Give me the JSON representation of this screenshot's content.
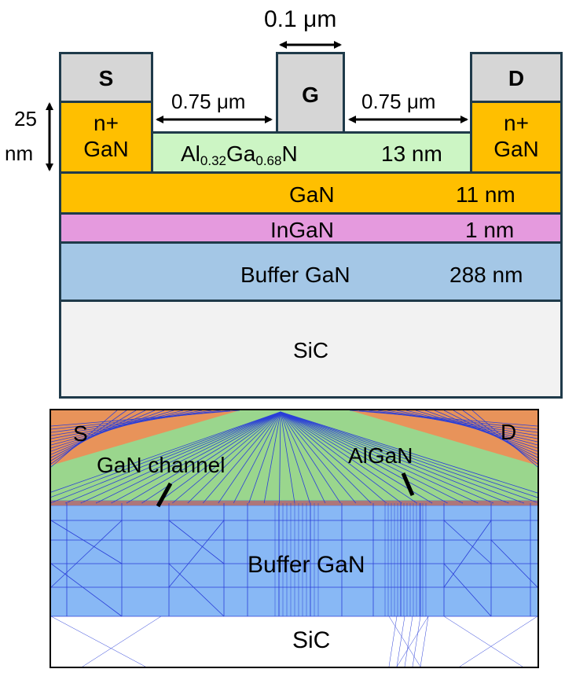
{
  "structure": {
    "gate_width": "0.1 μm",
    "spacing_left": "0.75 μm",
    "spacing_right": "0.75 μm",
    "height_label_top": "25",
    "height_label_bottom": "nm",
    "source_label": "S",
    "gate_label": "G",
    "drain_label": "D",
    "contact_line1": "n+",
    "contact_line2": "GaN",
    "barrier": {
      "al": "Al",
      "al_sub": "0.32",
      "ga": "Ga",
      "ga_sub": "0.68",
      "n": "N",
      "thickness": "13 nm",
      "color": "#ccf5c4"
    },
    "channel": {
      "name": "GaN",
      "thickness": "11 nm",
      "color": "#ffbf00"
    },
    "interlayer": {
      "name": "InGaN",
      "thickness": "1 nm",
      "color": "#e59ade"
    },
    "buffer": {
      "name": "Buffer GaN",
      "thickness": "288 nm",
      "color": "#a4c7e6"
    },
    "substrate": {
      "name": "SiC",
      "color": "#f2f2f2"
    },
    "contact_color": "#d6d6d6",
    "n_plus_color": "#ffbf00"
  },
  "mesh": {
    "source": "S",
    "drain": "D",
    "channel_label": "GaN channel",
    "algan_label": "AlGaN",
    "buffer_label": "Buffer GaN",
    "substrate_label": "SiC",
    "colors": {
      "metal": "#e8935a",
      "algan": "#9ad68d",
      "buffer": "#88b8f5",
      "mesh_line": "#2b3fd8",
      "substrate": "#ffffff"
    }
  }
}
